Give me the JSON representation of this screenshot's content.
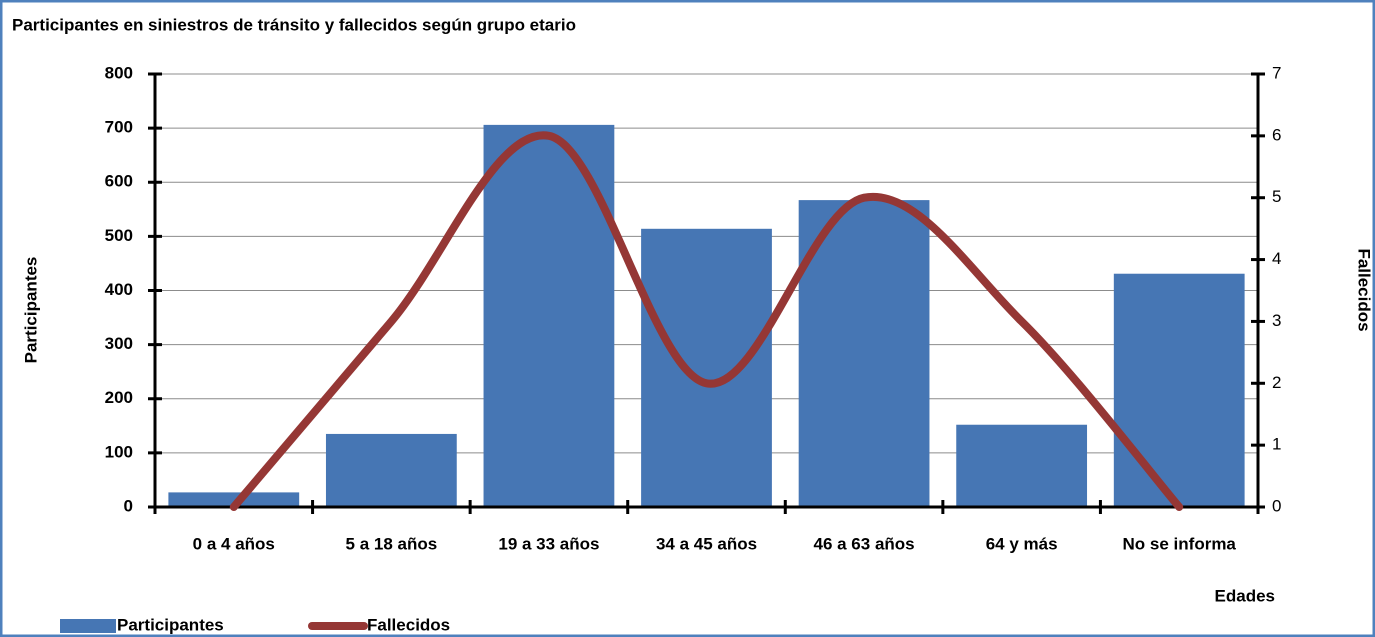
{
  "chart_data": {
    "type": "bar",
    "title": "Participantes en siniestros de tránsito y fallecidos según grupo etario",
    "x_label": "Edades",
    "y_label": "Participantes",
    "y2_label": "Fallecidos",
    "categories": [
      "0 a 4 años",
      "5 a 18 años",
      "19 a 33 años",
      "34 a 45 años",
      "46 a 63 años",
      "64 y más",
      "No se informa"
    ],
    "series": [
      {
        "name": "Participantes",
        "type": "bar",
        "color": "#4676b4",
        "values": [
          27,
          135,
          706,
          514,
          567,
          152,
          431
        ]
      },
      {
        "name": "Fallecidos",
        "type": "line",
        "axis": "y2",
        "color": "#953735",
        "smooth": true,
        "values": [
          0,
          3,
          6,
          2,
          5,
          3,
          0
        ]
      }
    ],
    "ylim": [
      0,
      800
    ],
    "yticks": [
      0,
      100,
      200,
      300,
      400,
      500,
      600,
      700,
      800
    ],
    "y2lim": [
      0,
      7
    ],
    "y2ticks": [
      0,
      1,
      2,
      3,
      4,
      5,
      6,
      7
    ],
    "grid": true,
    "legend": "bottom"
  }
}
